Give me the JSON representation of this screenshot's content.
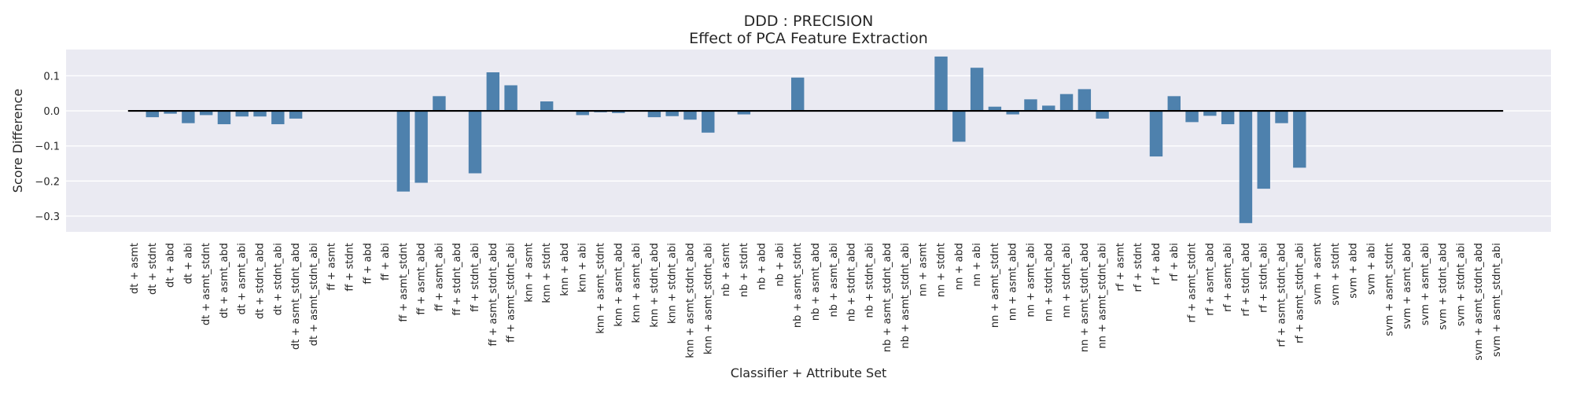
{
  "chart_data": {
    "type": "bar",
    "title": "DDD : PRECISION",
    "subtitle": "Effect of PCA Feature Extraction",
    "xlabel": "Classifier + Attribute Set",
    "ylabel": "Score Difference",
    "ylim": [
      -0.345,
      0.175
    ],
    "yticks": [
      -0.3,
      -0.2,
      -0.1,
      0.0,
      0.1
    ],
    "ytick_labels": [
      "−0.3",
      "−0.2",
      "−0.1",
      "0.0",
      "0.1"
    ],
    "grid": true,
    "bar_color": "#4e81ad",
    "background_color": "#eaeaf2",
    "zero_line_color": "#000000",
    "categories": [
      "dt + asmt",
      "dt + stdnt",
      "dt + abd",
      "dt + abi",
      "dt + asmt_stdnt",
      "dt + asmt_abd",
      "dt + asmt_abi",
      "dt + stdnt_abd",
      "dt + stdnt_abi",
      "dt + asmt_stdnt_abd",
      "dt + asmt_stdnt_abi",
      "ff + asmt",
      "ff + stdnt",
      "ff + abd",
      "ff + abi",
      "ff + asmt_stdnt",
      "ff + asmt_abd",
      "ff + asmt_abi",
      "ff + stdnt_abd",
      "ff + stdnt_abi",
      "ff + asmt_stdnt_abd",
      "ff + asmt_stdnt_abi",
      "knn + asmt",
      "knn + stdnt",
      "knn + abd",
      "knn + abi",
      "knn + asmt_stdnt",
      "knn + asmt_abd",
      "knn + asmt_abi",
      "knn + stdnt_abd",
      "knn + stdnt_abi",
      "knn + asmt_stdnt_abd",
      "knn + asmt_stdnt_abi",
      "nb + asmt",
      "nb + stdnt",
      "nb + abd",
      "nb + abi",
      "nb + asmt_stdnt",
      "nb + asmt_abd",
      "nb + asmt_abi",
      "nb + stdnt_abd",
      "nb + stdnt_abi",
      "nb + asmt_stdnt_abd",
      "nb + asmt_stdnt_abi",
      "nn + asmt",
      "nn + stdnt",
      "nn + abd",
      "nn + abi",
      "nn + asmt_stdnt",
      "nn + asmt_abd",
      "nn + asmt_abi",
      "nn + stdnt_abd",
      "nn + stdnt_abi",
      "nn + asmt_stdnt_abd",
      "nn + asmt_stdnt_abi",
      "rf + asmt",
      "rf + stdnt",
      "rf + abd",
      "rf + abi",
      "rf + asmt_stdnt",
      "rf + asmt_abd",
      "rf + asmt_abi",
      "rf + stdnt_abd",
      "rf + stdnt_abi",
      "rf + asmt_stdnt_abd",
      "rf + asmt_stdnt_abi",
      "svm + asmt",
      "svm + stdnt",
      "svm + abd",
      "svm + abi",
      "svm + asmt_stdnt",
      "svm + asmt_abd",
      "svm + asmt_abi",
      "svm + stdnt_abd",
      "svm + stdnt_abi",
      "svm + asmt_stdnt_abd",
      "svm + asmt_stdnt_abi"
    ],
    "values": [
      0.0,
      -0.018,
      -0.008,
      -0.035,
      -0.012,
      -0.038,
      -0.016,
      -0.016,
      -0.038,
      -0.022,
      0.0,
      0.0,
      0.0,
      0.0,
      0.0,
      -0.23,
      -0.205,
      0.042,
      0.0,
      -0.178,
      0.11,
      0.073,
      0.0,
      0.027,
      0.0,
      -0.012,
      -0.004,
      -0.006,
      0.0,
      -0.018,
      -0.015,
      -0.025,
      -0.062,
      0.0,
      -0.01,
      0.0,
      0.0,
      0.095,
      0.0,
      0.0,
      0.0,
      0.0,
      0.0,
      0.0,
      0.0,
      0.155,
      -0.088,
      0.123,
      0.012,
      -0.01,
      0.033,
      0.015,
      0.048,
      0.062,
      -0.022,
      0.0,
      0.0,
      -0.13,
      0.042,
      -0.032,
      -0.014,
      -0.038,
      -0.32,
      -0.222,
      -0.035,
      -0.162,
      0.0,
      0.0,
      0.0,
      0.0,
      0.0,
      0.0,
      0.0,
      0.0,
      0.0,
      0.0,
      0.0
    ]
  }
}
